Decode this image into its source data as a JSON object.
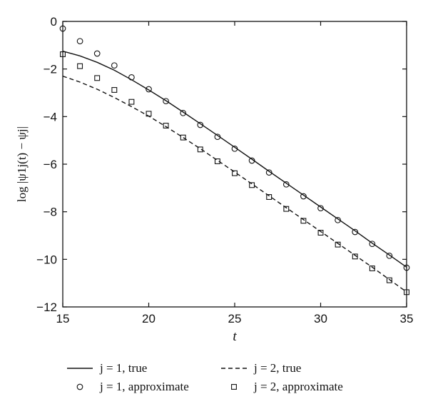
{
  "chart_data": {
    "type": "line",
    "xlabel": "t",
    "ylabel": "log |ψ1j(t) − ψj|",
    "xlim": [
      15,
      35
    ],
    "ylim": [
      -12,
      0
    ],
    "xticks": [
      15,
      20,
      25,
      30,
      35
    ],
    "yticks": [
      0,
      -2,
      -4,
      -6,
      -8,
      -10,
      -12
    ],
    "grid": false,
    "legend_placement": "bottom",
    "series": [
      {
        "name": "j = 1, true",
        "style": "solid-line",
        "x": [
          15,
          16,
          17,
          18,
          19,
          20,
          21,
          22,
          23,
          24,
          25,
          26,
          27,
          28,
          29,
          30,
          31,
          32,
          33,
          34,
          35
        ],
        "y": [
          -1.25,
          -1.45,
          -1.72,
          -2.05,
          -2.45,
          -2.88,
          -3.33,
          -3.81,
          -4.3,
          -4.79,
          -5.29,
          -5.79,
          -6.3,
          -6.8,
          -7.3,
          -7.8,
          -8.3,
          -8.8,
          -9.32,
          -9.82,
          -10.33
        ]
      },
      {
        "name": "j = 1, approximate",
        "style": "circle-marker",
        "x": [
          15,
          16,
          17,
          18,
          19,
          20,
          21,
          22,
          23,
          24,
          25,
          26,
          27,
          28,
          29,
          30,
          31,
          32,
          33,
          34,
          35
        ],
        "y": [
          -0.3,
          -0.83,
          -1.35,
          -1.85,
          -2.35,
          -2.85,
          -3.35,
          -3.85,
          -4.35,
          -4.85,
          -5.35,
          -5.85,
          -6.35,
          -6.85,
          -7.35,
          -7.85,
          -8.35,
          -8.85,
          -9.35,
          -9.85,
          -10.35
        ]
      },
      {
        "name": "j = 2, true",
        "style": "dashed-line",
        "x": [
          15,
          16,
          17,
          18,
          19,
          20,
          21,
          22,
          23,
          24,
          25,
          26,
          27,
          28,
          29,
          30,
          31,
          32,
          33,
          34,
          35
        ],
        "y": [
          -2.3,
          -2.55,
          -2.85,
          -3.2,
          -3.58,
          -3.98,
          -4.42,
          -4.88,
          -5.35,
          -5.84,
          -6.33,
          -6.83,
          -7.33,
          -7.83,
          -8.33,
          -8.83,
          -9.33,
          -9.83,
          -10.33,
          -10.85,
          -11.37
        ]
      },
      {
        "name": "j = 2, approximate",
        "style": "square-marker",
        "x": [
          15,
          16,
          17,
          18,
          19,
          20,
          21,
          22,
          23,
          24,
          25,
          26,
          27,
          28,
          29,
          30,
          31,
          32,
          33,
          34,
          35
        ],
        "y": [
          -1.38,
          -1.88,
          -2.38,
          -2.88,
          -3.38,
          -3.88,
          -4.38,
          -4.88,
          -5.38,
          -5.88,
          -6.38,
          -6.88,
          -7.38,
          -7.88,
          -8.38,
          -8.88,
          -9.38,
          -9.88,
          -10.38,
          -10.88,
          -11.38
        ]
      }
    ],
    "colors": {
      "ink": "#111111",
      "background": "#ffffff"
    }
  }
}
